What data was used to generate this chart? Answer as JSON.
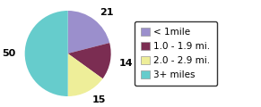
{
  "slices": [
    21,
    14,
    15,
    50
  ],
  "labels": [
    "21",
    "14",
    "15",
    "50"
  ],
  "colors": [
    "#9b8fcc",
    "#7b2d52",
    "#eeee99",
    "#66cccc"
  ],
  "legend_labels": [
    "< 1mile",
    "1.0 - 1.9 mi.",
    "2.0 - 2.9 mi.",
    "3+ miles"
  ],
  "startangle": 90,
  "figsize": [
    2.91,
    1.2
  ],
  "dpi": 100
}
